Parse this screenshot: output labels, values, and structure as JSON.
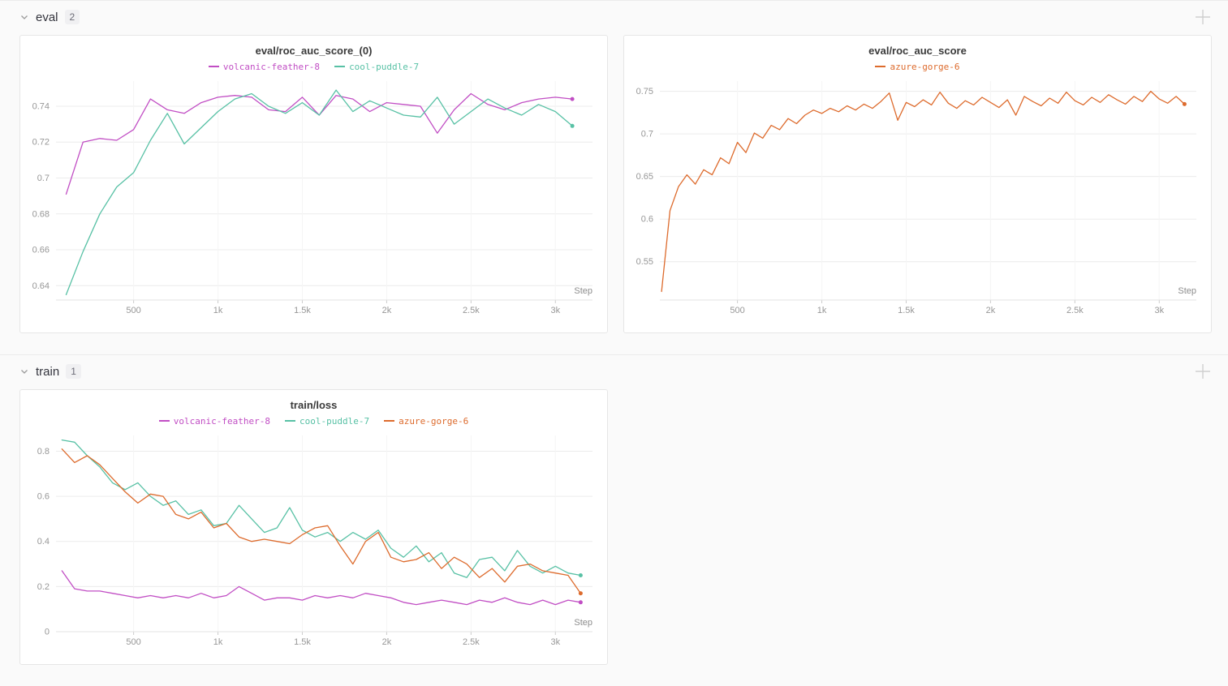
{
  "sections": [
    {
      "name": "eval",
      "count": "2"
    },
    {
      "name": "train",
      "count": "1"
    }
  ],
  "icons": {
    "chevron_down": "⌄",
    "add_panel": "+"
  },
  "colors": {
    "volcanic-feather-8": "#c14ec4",
    "cool-puddle-7": "#58c1a5",
    "azure-gorge-6": "#dd6b2d"
  },
  "chart_data": [
    {
      "type": "line",
      "title": "eval/roc_auc_score_(0)",
      "xlabel": "Step",
      "ylabel": "",
      "grid": true,
      "legend_position": "top",
      "xlim": [
        40,
        3220
      ],
      "ylim": [
        0.632,
        0.754
      ],
      "x_ticks": [
        500,
        1000,
        1500,
        2000,
        2500,
        3000
      ],
      "x_tick_labels": [
        "500",
        "1k",
        "1.5k",
        "2k",
        "2.5k",
        "3k"
      ],
      "y_ticks": [
        0.64,
        0.66,
        0.68,
        0.7,
        0.72,
        0.74
      ],
      "y_tick_labels": [
        "0.64",
        "0.66",
        "0.68",
        "0.7",
        "0.72",
        "0.74"
      ],
      "x": [
        100,
        200,
        300,
        400,
        500,
        600,
        700,
        800,
        900,
        1000,
        1100,
        1200,
        1300,
        1400,
        1500,
        1600,
        1700,
        1800,
        1900,
        2000,
        2100,
        2200,
        2300,
        2400,
        2500,
        2600,
        2700,
        2800,
        2900,
        3000,
        3100
      ],
      "series": [
        {
          "name": "volcanic-feather-8",
          "color": "#c14ec4",
          "values": [
            0.691,
            0.72,
            0.722,
            0.721,
            0.727,
            0.744,
            0.738,
            0.736,
            0.742,
            0.745,
            0.746,
            0.745,
            0.738,
            0.737,
            0.745,
            0.735,
            0.746,
            0.744,
            0.737,
            0.742,
            0.741,
            0.74,
            0.725,
            0.738,
            0.747,
            0.741,
            0.738,
            0.742,
            0.744,
            0.745,
            0.744
          ]
        },
        {
          "name": "cool-puddle-7",
          "color": "#58c1a5",
          "values": [
            0.635,
            0.659,
            0.68,
            0.695,
            0.703,
            0.721,
            0.736,
            0.719,
            0.728,
            0.737,
            0.744,
            0.747,
            0.74,
            0.736,
            0.742,
            0.735,
            0.749,
            0.737,
            0.743,
            0.739,
            0.735,
            0.734,
            0.745,
            0.73,
            0.737,
            0.744,
            0.739,
            0.735,
            0.741,
            0.737,
            0.729
          ]
        }
      ]
    },
    {
      "type": "line",
      "title": "eval/roc_auc_score",
      "xlabel": "Step",
      "ylabel": "",
      "grid": true,
      "legend_position": "top",
      "xlim": [
        40,
        3220
      ],
      "ylim": [
        0.505,
        0.762
      ],
      "x_ticks": [
        500,
        1000,
        1500,
        2000,
        2500,
        3000
      ],
      "x_tick_labels": [
        "500",
        "1k",
        "1.5k",
        "2k",
        "2.5k",
        "3k"
      ],
      "y_ticks": [
        0.55,
        0.6,
        0.65,
        0.7,
        0.75
      ],
      "y_tick_labels": [
        "0.55",
        "0.6",
        "0.65",
        "0.7",
        "0.75"
      ],
      "x": [
        50,
        100,
        150,
        200,
        250,
        300,
        350,
        400,
        450,
        500,
        550,
        600,
        650,
        700,
        750,
        800,
        850,
        900,
        950,
        1000,
        1050,
        1100,
        1150,
        1200,
        1250,
        1300,
        1350,
        1400,
        1450,
        1500,
        1550,
        1600,
        1650,
        1700,
        1750,
        1800,
        1850,
        1900,
        1950,
        2000,
        2050,
        2100,
        2150,
        2200,
        2250,
        2300,
        2350,
        2400,
        2450,
        2500,
        2550,
        2600,
        2650,
        2700,
        2750,
        2800,
        2850,
        2900,
        2950,
        3000,
        3050,
        3100,
        3150
      ],
      "series": [
        {
          "name": "azure-gorge-6",
          "color": "#dd6b2d",
          "values": [
            0.515,
            0.61,
            0.638,
            0.652,
            0.641,
            0.658,
            0.652,
            0.672,
            0.665,
            0.69,
            0.678,
            0.701,
            0.695,
            0.71,
            0.705,
            0.718,
            0.712,
            0.722,
            0.728,
            0.724,
            0.73,
            0.726,
            0.733,
            0.728,
            0.735,
            0.73,
            0.738,
            0.748,
            0.716,
            0.737,
            0.732,
            0.74,
            0.734,
            0.749,
            0.736,
            0.73,
            0.739,
            0.734,
            0.743,
            0.737,
            0.731,
            0.74,
            0.722,
            0.744,
            0.738,
            0.733,
            0.742,
            0.736,
            0.749,
            0.739,
            0.734,
            0.743,
            0.737,
            0.746,
            0.74,
            0.735,
            0.744,
            0.738,
            0.75,
            0.741,
            0.736,
            0.744,
            0.735
          ]
        }
      ]
    },
    {
      "type": "line",
      "title": "train/loss",
      "xlabel": "Step",
      "ylabel": "",
      "grid": true,
      "legend_position": "top",
      "xlim": [
        40,
        3220
      ],
      "ylim": [
        0,
        0.87
      ],
      "x_ticks": [
        500,
        1000,
        1500,
        2000,
        2500,
        3000
      ],
      "x_tick_labels": [
        "500",
        "1k",
        "1.5k",
        "2k",
        "2.5k",
        "3k"
      ],
      "y_ticks": [
        0,
        0.2,
        0.4,
        0.6,
        0.8
      ],
      "y_tick_labels": [
        "0",
        "0.2",
        "0.4",
        "0.6",
        "0.8"
      ],
      "x": [
        75,
        150,
        225,
        300,
        375,
        450,
        525,
        600,
        675,
        750,
        825,
        900,
        975,
        1050,
        1125,
        1200,
        1275,
        1350,
        1425,
        1500,
        1575,
        1650,
        1725,
        1800,
        1875,
        1950,
        2025,
        2100,
        2175,
        2250,
        2325,
        2400,
        2475,
        2550,
        2625,
        2700,
        2775,
        2850,
        2925,
        3000,
        3075,
        3150
      ],
      "series": [
        {
          "name": "volcanic-feather-8",
          "color": "#c14ec4",
          "values": [
            0.27,
            0.19,
            0.18,
            0.18,
            0.17,
            0.16,
            0.15,
            0.16,
            0.15,
            0.16,
            0.15,
            0.17,
            0.15,
            0.16,
            0.2,
            0.17,
            0.14,
            0.15,
            0.15,
            0.14,
            0.16,
            0.15,
            0.16,
            0.15,
            0.17,
            0.16,
            0.15,
            0.13,
            0.12,
            0.13,
            0.14,
            0.13,
            0.12,
            0.14,
            0.13,
            0.15,
            0.13,
            0.12,
            0.14,
            0.12,
            0.14,
            0.13
          ]
        },
        {
          "name": "cool-puddle-7",
          "color": "#58c1a5",
          "values": [
            0.85,
            0.84,
            0.78,
            0.73,
            0.66,
            0.63,
            0.66,
            0.6,
            0.56,
            0.58,
            0.52,
            0.54,
            0.47,
            0.48,
            0.56,
            0.5,
            0.44,
            0.46,
            0.55,
            0.45,
            0.42,
            0.44,
            0.4,
            0.44,
            0.41,
            0.45,
            0.37,
            0.33,
            0.38,
            0.31,
            0.35,
            0.26,
            0.24,
            0.32,
            0.33,
            0.27,
            0.36,
            0.29,
            0.26,
            0.29,
            0.26,
            0.25
          ]
        },
        {
          "name": "azure-gorge-6",
          "color": "#dd6b2d",
          "values": [
            0.81,
            0.75,
            0.78,
            0.74,
            0.68,
            0.62,
            0.57,
            0.61,
            0.6,
            0.52,
            0.5,
            0.53,
            0.46,
            0.48,
            0.42,
            0.4,
            0.41,
            0.4,
            0.39,
            0.43,
            0.46,
            0.47,
            0.38,
            0.3,
            0.4,
            0.44,
            0.33,
            0.31,
            0.32,
            0.35,
            0.28,
            0.33,
            0.3,
            0.24,
            0.28,
            0.22,
            0.29,
            0.3,
            0.27,
            0.26,
            0.25,
            0.17
          ]
        }
      ]
    }
  ]
}
